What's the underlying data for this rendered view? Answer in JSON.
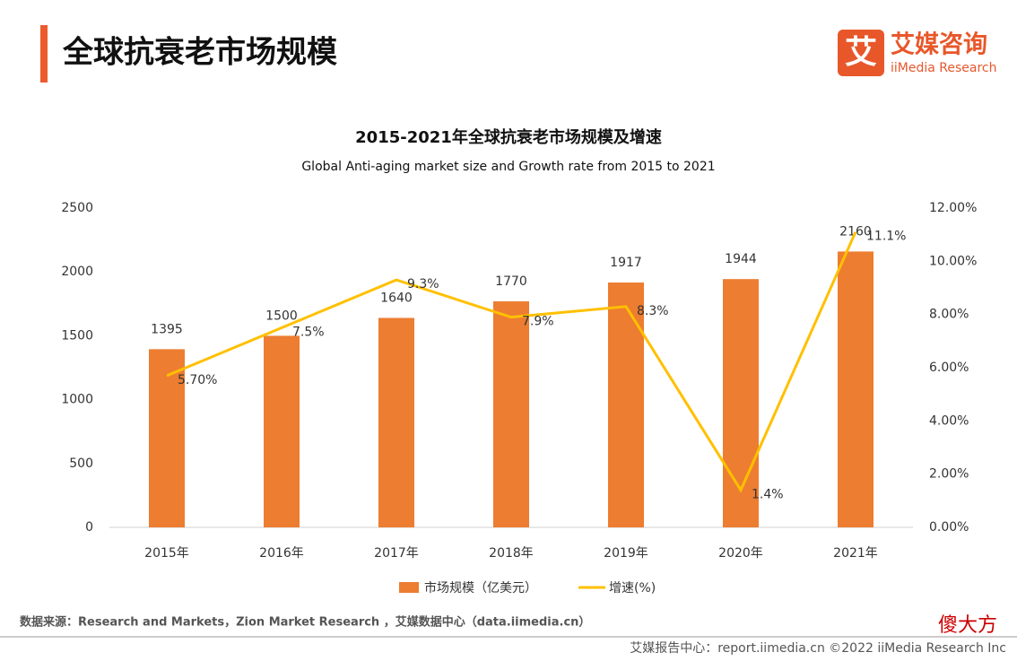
{
  "header": {
    "title": "全球抗衰老市场规模",
    "logo_icon": "艾",
    "logo_cn": "艾媒咨询",
    "logo_en": "iiMedia Research"
  },
  "chart_data": {
    "type": "bar",
    "title": "2015-2021年全球抗衰老市场规模及增速",
    "subtitle": "Global Anti-aging market size and Growth rate from 2015 to 2021",
    "categories": [
      "2015年",
      "2016年",
      "2017年",
      "2018年",
      "2019年",
      "2020年",
      "2021年"
    ],
    "series": [
      {
        "name": "市场规模（亿美元）",
        "type": "bar",
        "color": "#ed7d31",
        "values": [
          1395,
          1500,
          1640,
          1770,
          1917,
          1944,
          2160
        ]
      },
      {
        "name": "增速(%)",
        "type": "line",
        "axis": "y2",
        "color": "#ffc000",
        "values": [
          5.7,
          7.5,
          9.3,
          7.9,
          8.3,
          1.4,
          11.1
        ],
        "value_labels": [
          "5.70%",
          "7.5%",
          "9.3%",
          "7.9%",
          "8.3%",
          "1.4%",
          "11.1%"
        ]
      }
    ],
    "ylim": [
      0,
      2500
    ],
    "yticks": [
      0,
      500,
      1000,
      1500,
      2000,
      2500
    ],
    "y2lim": [
      0,
      12
    ],
    "y2ticks": [
      {
        "value": 0,
        "label": "0.00%"
      },
      {
        "value": 2,
        "label": "2.00%"
      },
      {
        "value": 4,
        "label": "4.00%"
      },
      {
        "value": 6,
        "label": "6.00%"
      },
      {
        "value": 8,
        "label": "8.00%"
      },
      {
        "value": 10,
        "label": "10.00%"
      },
      {
        "value": 12,
        "label": "12.00%"
      }
    ],
    "legend": "bottom"
  },
  "source": "数据来源：Research and Markets，Zion Market Research ，艾媒数据中心（data.iimedia.cn）",
  "footer": "艾媒报告中心：report.iimedia.cn  ©2022  iiMedia Research  Inc",
  "watermark": "傻大方"
}
